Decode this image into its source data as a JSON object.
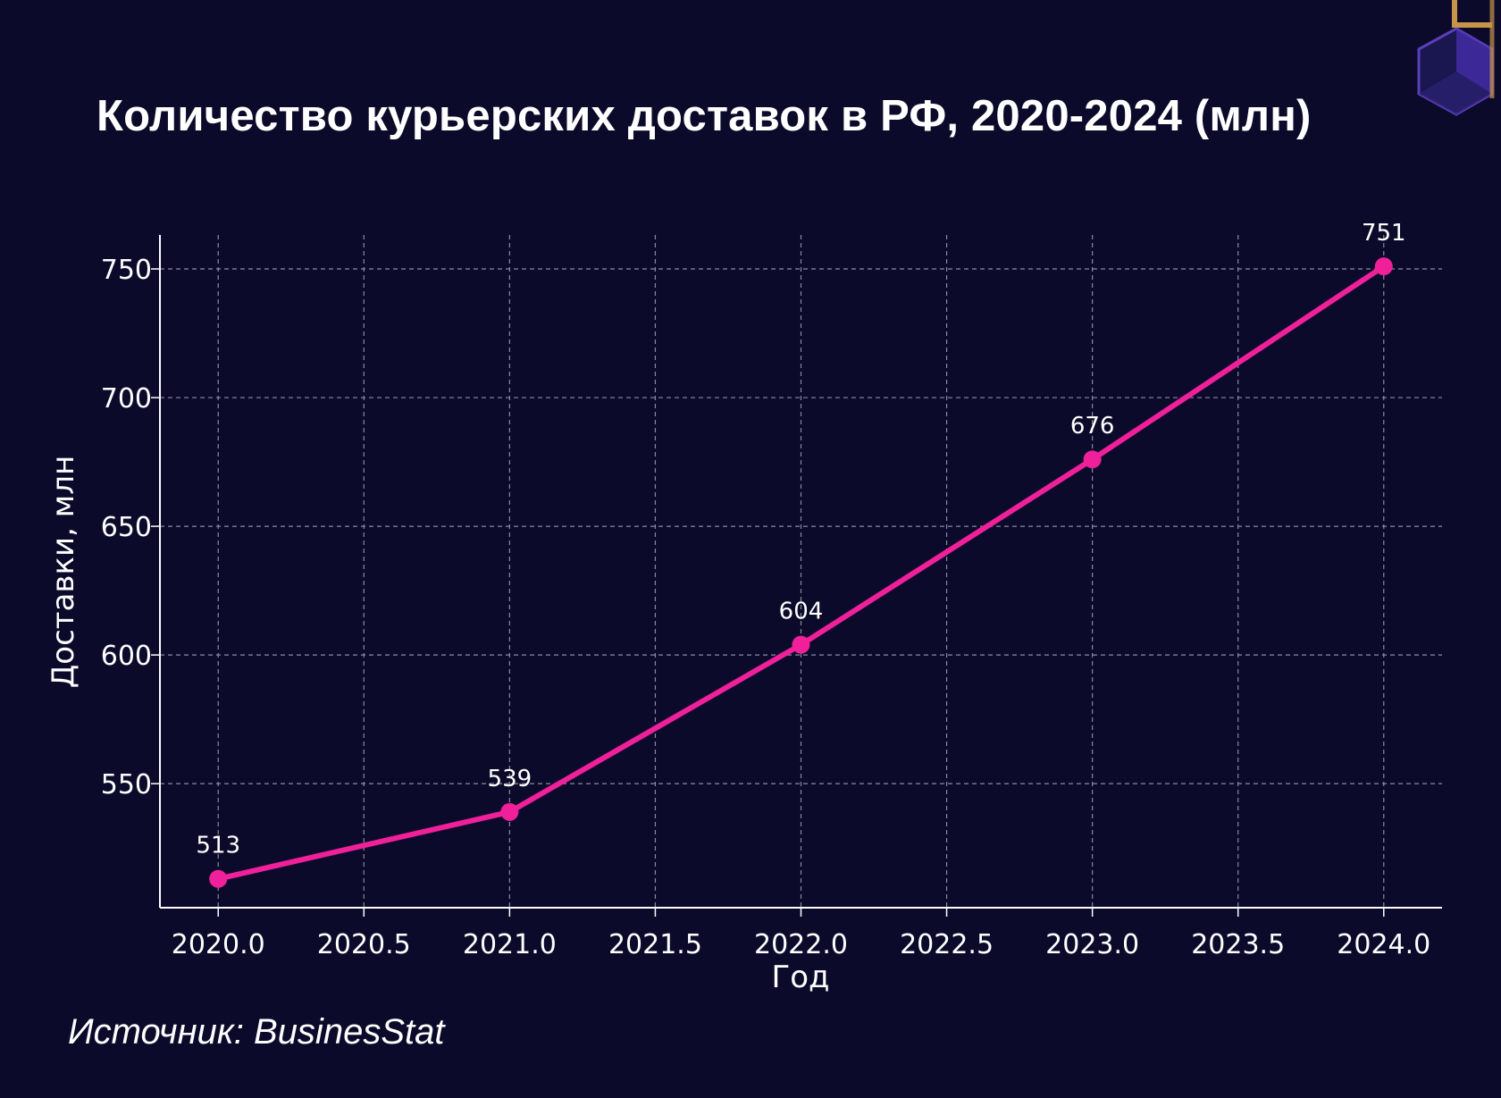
{
  "title": "Количество курьерских доставок в РФ, 2020-2024 (млн)",
  "source": "Источник: BusinesStat",
  "colors": {
    "background": "#0c0a2a",
    "line": "#f0209a",
    "grid": "#8a8a9e",
    "text": "#ffffff"
  },
  "chart_data": {
    "type": "line",
    "title": "Количество курьерских доставок в РФ, 2020-2024 (млн)",
    "xlabel": "Год",
    "ylabel": "Доставки, млн",
    "x": [
      2020,
      2021,
      2022,
      2023,
      2024
    ],
    "series": [
      {
        "values": [
          513,
          539,
          604,
          676,
          751
        ]
      }
    ],
    "x_ticks": [
      "2020.0",
      "2020.5",
      "2021.0",
      "2021.5",
      "2022.0",
      "2022.5",
      "2023.0",
      "2023.5",
      "2024.0"
    ],
    "y_ticks": [
      550,
      600,
      650,
      700,
      750
    ],
    "xlim": [
      2019.8,
      2024.2
    ],
    "ylim": [
      501.8,
      763.2
    ],
    "grid": true,
    "grid_style": "dashed",
    "data_labels": true
  }
}
